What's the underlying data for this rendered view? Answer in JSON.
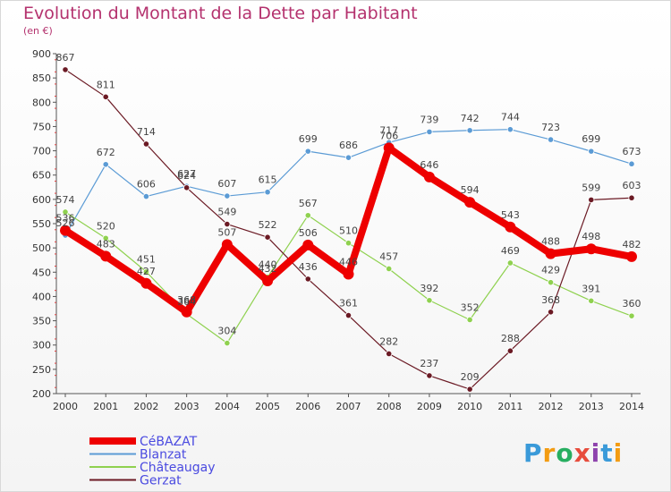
{
  "title": "Evolution du Montant de la Dette par Habitant",
  "subtitle": "(en €)",
  "logo": "Proxiti",
  "chart_data": {
    "type": "line",
    "x": [
      "2000",
      "2001",
      "2002",
      "2003",
      "2004",
      "2005",
      "2006",
      "2007",
      "2008",
      "2009",
      "2010",
      "2011",
      "2012",
      "2013",
      "2014"
    ],
    "ylim": [
      200,
      900
    ],
    "yticks": [
      200,
      250,
      300,
      350,
      400,
      450,
      500,
      550,
      600,
      650,
      700,
      750,
      800,
      850,
      900
    ],
    "grid": false,
    "legend_position": "bottom-left",
    "series": [
      {
        "name": "CéBAZAT",
        "color": "#ee0000",
        "values": [
          536,
          483,
          427,
          368,
          507,
          432,
          506,
          446,
          706,
          646,
          594,
          543,
          488,
          498,
          482
        ]
      },
      {
        "name": "Blanzat",
        "color": "#5b9bd5",
        "values": [
          526,
          672,
          606,
          627,
          607,
          615,
          699,
          686,
          717,
          739,
          742,
          744,
          723,
          699,
          673
        ]
      },
      {
        "name": "Châteaugay",
        "color": "#8fd14f",
        "values": [
          574,
          520,
          451,
          364,
          304,
          440,
          567,
          510,
          457,
          392,
          352,
          469,
          429,
          391,
          360
        ]
      },
      {
        "name": "Gerzat",
        "color": "#6b1a24",
        "values": [
          867,
          811,
          714,
          624,
          549,
          522,
          436,
          361,
          282,
          237,
          209,
          288,
          368,
          599,
          603
        ]
      }
    ]
  }
}
